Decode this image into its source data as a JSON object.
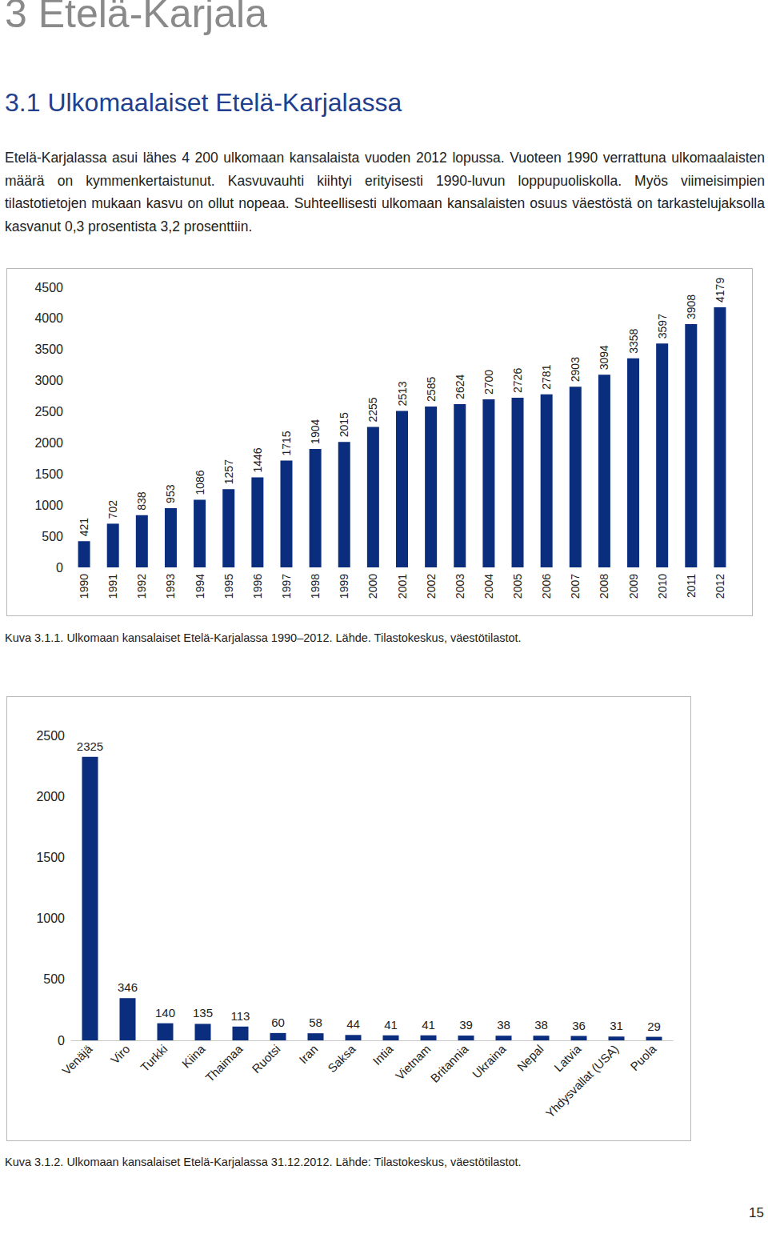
{
  "document": {
    "chapter": "3 Etelä-Karjala",
    "section": "3.1 Ulkomaalaiset Etelä-Karjalassa",
    "paragraph": "Etelä-Karjalassa asui lähes 4 200 ulkomaan kansalaista vuoden 2012 lopussa. Vuoteen 1990 verrattuna ulkomaalaisten määrä on kymmenkertaistunut. Kasvuvauhti kiihtyi erityisesti 1990-luvun loppupuoliskolla. Myös viimeisimpien tilastotietojen mukaan kasvu on ollut nopeaa. Suhteellisesti ulkomaan kansalaisten osuus väestöstä on tarkastelujaksolla kasvanut 0,3 prosentista 3,2 prosenttiin.",
    "page_number": "15"
  },
  "chart_data": [
    {
      "type": "bar",
      "caption": "Kuva 3.1.1. Ulkomaan kansalaiset Etelä-Karjalassa 1990–2012. Lähde. Tilastokeskus, väestötilastot.",
      "categories": [
        "1990",
        "1991",
        "1992",
        "1993",
        "1994",
        "1995",
        "1996",
        "1997",
        "1998",
        "1999",
        "2000",
        "2001",
        "2002",
        "2003",
        "2004",
        "2005",
        "2006",
        "2007",
        "2008",
        "2009",
        "2010",
        "2011",
        "2012"
      ],
      "values": [
        421,
        702,
        838,
        953,
        1086,
        1257,
        1446,
        1715,
        1904,
        2015,
        2255,
        2513,
        2585,
        2624,
        2700,
        2726,
        2781,
        2903,
        3094,
        3358,
        3597,
        3908,
        4179
      ],
      "color": "#0b2d7d",
      "ylim": [
        0,
        4500
      ],
      "yticks": [
        0,
        500,
        1000,
        1500,
        2000,
        2500,
        3000,
        3500,
        4000,
        4500
      ],
      "grid": false,
      "data_labels": true
    },
    {
      "type": "bar",
      "caption": "Kuva 3.1.2. Ulkomaan kansalaiset Etelä-Karjalassa 31.12.2012. Lähde: Tilastokeskus, väestötilastot.",
      "categories": [
        "Venäjä",
        "Viro",
        "Turkki",
        "Kiina",
        "Thaimaa",
        "Ruotsi",
        "Iran",
        "Saksa",
        "Intia",
        "Vietnam",
        "Britannia",
        "Ukraina",
        "Nepal",
        "Latvia",
        "Yhdysvallat (USA)",
        "Puola"
      ],
      "values": [
        2325,
        346,
        140,
        135,
        113,
        60,
        58,
        44,
        41,
        41,
        39,
        38,
        38,
        36,
        31,
        29
      ],
      "color": "#0b2d7d",
      "ylim": [
        0,
        2500
      ],
      "yticks": [
        0,
        500,
        1000,
        1500,
        2000,
        2500
      ],
      "grid": false,
      "data_labels": true
    }
  ]
}
